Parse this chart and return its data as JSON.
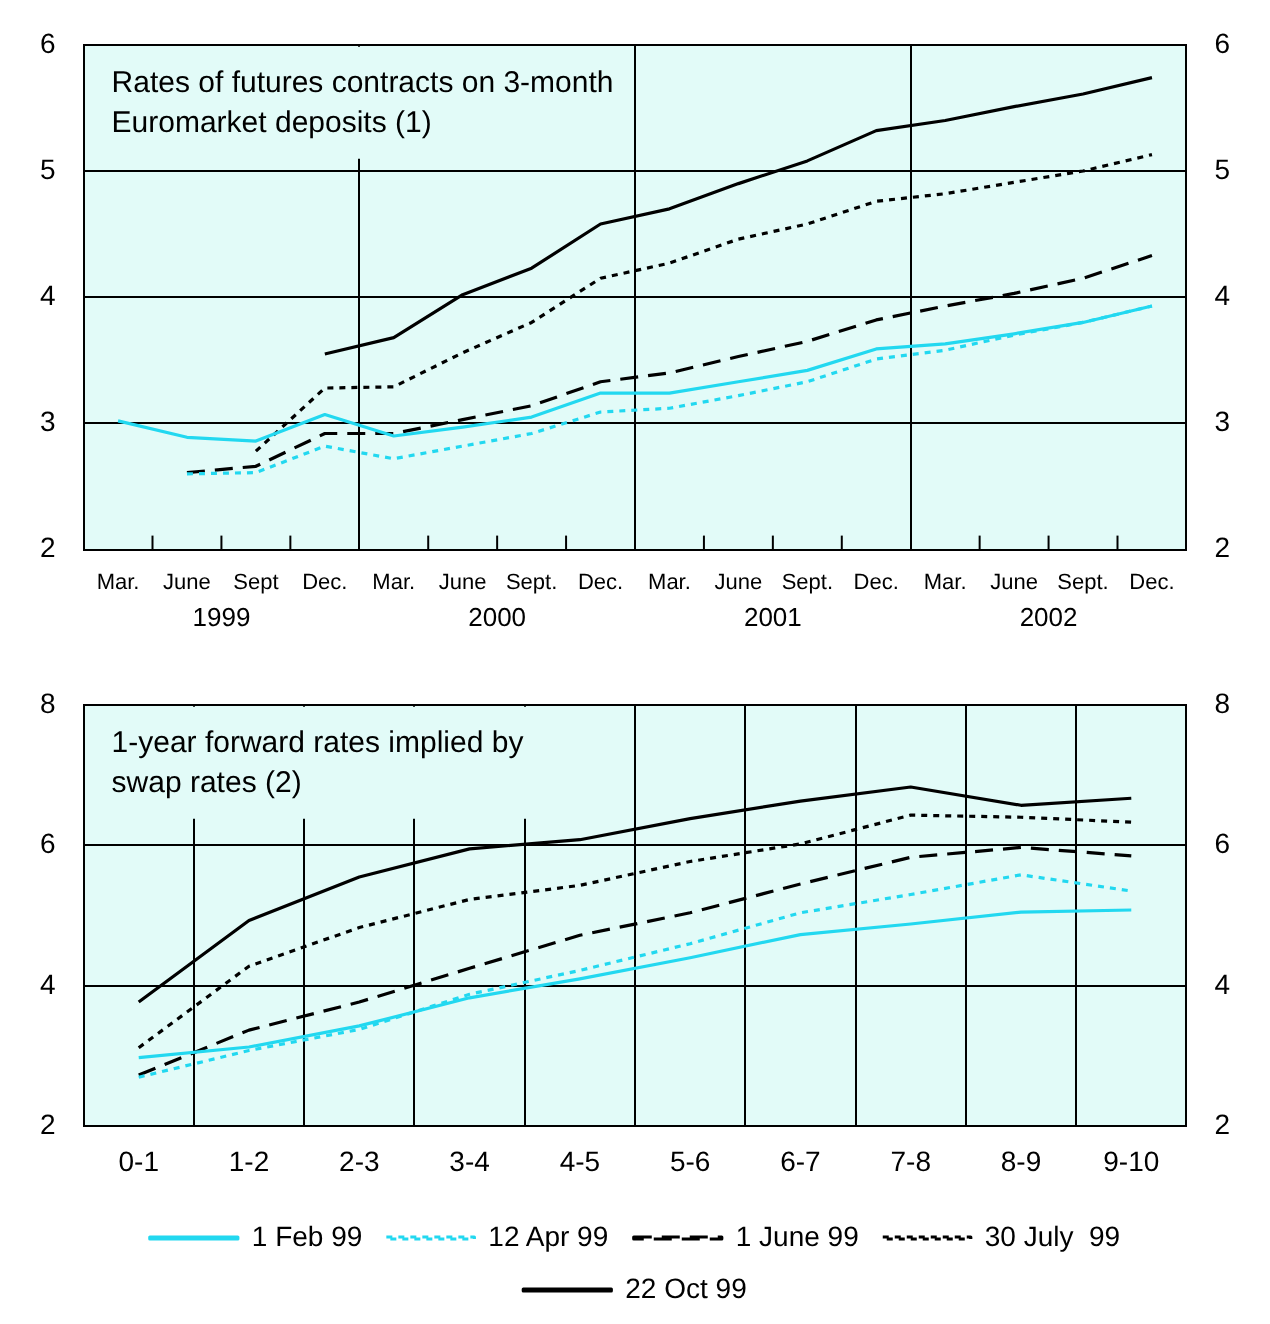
{
  "chart_data": [
    {
      "type": "line",
      "title": "Rates of futures contracts on 3-month\nEuromarket deposits (1)",
      "categories": [
        "Mar.",
        "June",
        "Sept",
        "Dec.",
        "Mar.",
        "June",
        "Sept.",
        "Dec.",
        "Mar.",
        "June",
        "Sept.",
        "Dec.",
        "Mar.",
        "June",
        "Sept.",
        "Dec."
      ],
      "annotations": [
        "1999",
        "2000",
        "2001",
        "2002"
      ],
      "series": [
        {
          "color": "#22d8f0",
          "line_style": "solid",
          "values": [
            3.02,
            2.89,
            2.86,
            3.07,
            2.9,
            2.97,
            3.05,
            3.24,
            3.24,
            3.33,
            3.42,
            3.59,
            3.63,
            3.71,
            3.8,
            3.93
          ]
        },
        {
          "color": "#22d8f0",
          "line_style": "dotted",
          "values": [
            null,
            2.6,
            2.61,
            2.82,
            2.72,
            2.82,
            2.92,
            3.09,
            3.12,
            3.22,
            3.33,
            3.51,
            3.58,
            3.7,
            3.8,
            3.93
          ]
        },
        {
          "color": "#000000",
          "line_style": "dashed",
          "values": [
            null,
            2.61,
            2.66,
            2.92,
            2.92,
            3.03,
            3.14,
            3.33,
            3.4,
            3.53,
            3.65,
            3.82,
            3.93,
            4.03,
            4.15,
            4.33
          ]
        },
        {
          "color": "#000000",
          "line_style": "dotted",
          "values": [
            null,
            null,
            2.78,
            3.28,
            3.29,
            3.56,
            3.8,
            4.15,
            4.27,
            4.46,
            4.58,
            4.76,
            4.82,
            4.91,
            5.0,
            5.13
          ]
        },
        {
          "color": "#000000",
          "line_style": "solid",
          "values": [
            null,
            null,
            null,
            3.55,
            3.68,
            4.02,
            4.23,
            4.58,
            4.7,
            4.9,
            5.08,
            5.32,
            5.4,
            5.51,
            5.61,
            5.74
          ]
        }
      ],
      "ylim": [
        2,
        6
      ],
      "yticks": [
        2,
        3,
        4,
        5,
        6
      ],
      "y2lim": [
        2,
        6
      ],
      "y2ticks": [
        2,
        3,
        4,
        5,
        6
      ],
      "grid": true,
      "marker": "none"
    },
    {
      "type": "line",
      "title": "1-year forward rates implied by\nswap rates (2)",
      "categories": [
        "0-1",
        "1-2",
        "2-3",
        "3-4",
        "4-5",
        "5-6",
        "6-7",
        "7-8",
        "8-9",
        "9-10"
      ],
      "series": [
        {
          "name": "1 Feb 99",
          "color": "#22d8f0",
          "line_style": "solid",
          "values": [
            2.98,
            3.13,
            3.43,
            3.83,
            4.1,
            4.4,
            4.73,
            4.88,
            5.05,
            5.08
          ]
        },
        {
          "name": "12 Apr 99",
          "color": "#22d8f0",
          "line_style": "dotted",
          "values": [
            2.7,
            3.08,
            3.38,
            3.88,
            4.22,
            4.6,
            5.04,
            5.3,
            5.58,
            5.35
          ]
        },
        {
          "name": "1 June 99",
          "color": "#000000",
          "line_style": "dashed",
          "values": [
            2.73,
            3.37,
            3.77,
            4.25,
            4.72,
            5.04,
            5.45,
            5.83,
            5.97,
            5.85
          ]
        },
        {
          "name": "30 July  99",
          "color": "#000000",
          "line_style": "dotted",
          "values": [
            3.12,
            4.28,
            4.83,
            5.23,
            5.43,
            5.77,
            6.02,
            6.43,
            6.4,
            6.33
          ]
        },
        {
          "name": "22 Oct 99",
          "color": "#000000",
          "line_style": "solid",
          "values": [
            3.77,
            4.93,
            5.55,
            5.95,
            6.08,
            6.38,
            6.63,
            6.83,
            6.57,
            6.67
          ]
        }
      ],
      "ylim": [
        2,
        8
      ],
      "yticks": [
        2,
        4,
        6,
        8
      ],
      "y2lim": [
        2,
        8
      ],
      "y2ticks": [
        2,
        4,
        6,
        8
      ],
      "grid": true,
      "legend": "bottom",
      "marker": "none"
    }
  ]
}
